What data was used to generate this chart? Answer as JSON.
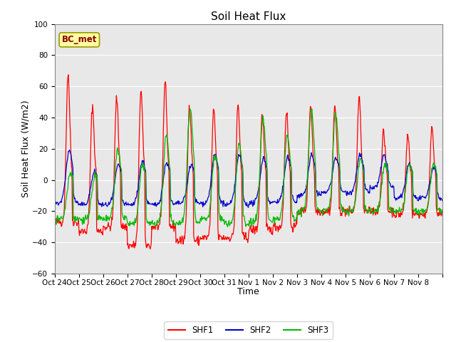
{
  "title": "Soil Heat Flux",
  "ylabel": "Soil Heat Flux (W/m2)",
  "xlabel": "Time",
  "ylim": [
    -60,
    100
  ],
  "yticks": [
    -60,
    -40,
    -20,
    0,
    20,
    40,
    60,
    80,
    100
  ],
  "x_labels": [
    "Oct 24",
    "Oct 25",
    "Oct 26",
    "Oct 27",
    "Oct 28",
    "Oct 29",
    "Oct 30",
    "Oct 31",
    "Nov 1",
    "Nov 2",
    "Nov 3",
    "Nov 4",
    "Nov 5",
    "Nov 6",
    "Nov 7",
    "Nov 8"
  ],
  "shf1_color": "#ff0000",
  "shf2_color": "#0000cc",
  "shf3_color": "#00bb00",
  "legend_label1": "SHF1",
  "legend_label2": "SHF2",
  "legend_label3": "SHF3",
  "annotation_text": "BC_met",
  "bg_color": "#e8e8e8",
  "title_fontsize": 11,
  "label_fontsize": 9,
  "tick_fontsize": 7.5
}
